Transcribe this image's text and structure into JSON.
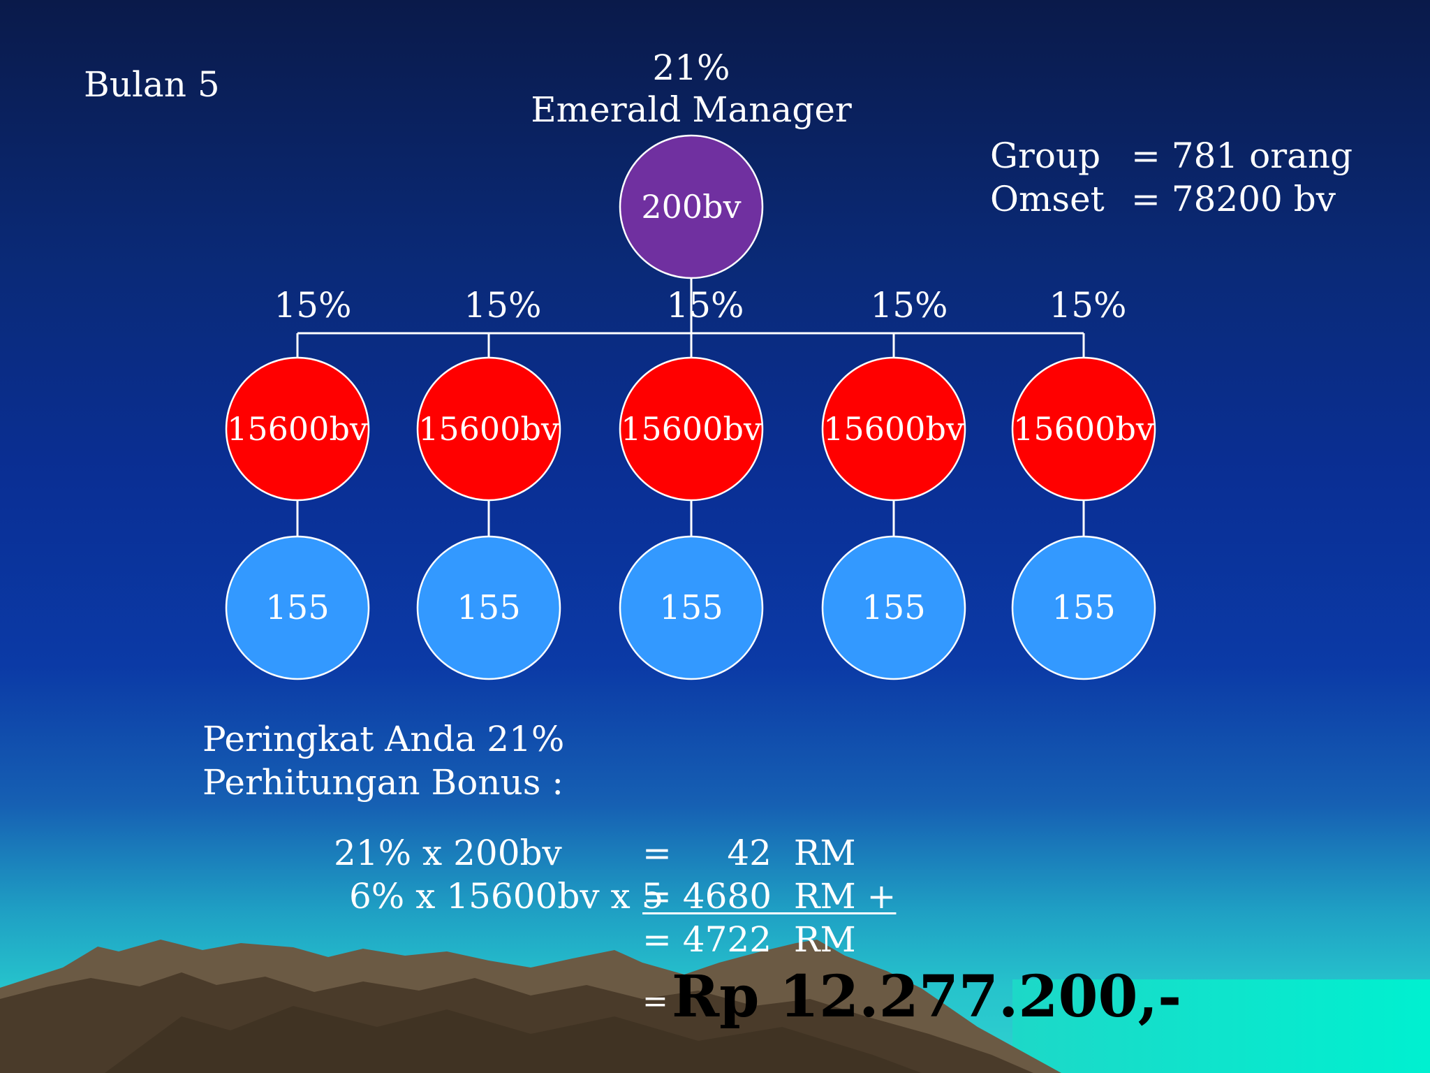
{
  "slide": {
    "title": "Bulan 5",
    "top_node": {
      "percent": "21%",
      "rank": "Emerald Manager",
      "value": "200bv"
    },
    "summary": {
      "group_label": "Group",
      "group_value": "= 781 orang",
      "omset_label": "Omset",
      "omset_value": "= 78200 bv"
    },
    "branches": [
      {
        "percent": "15%",
        "mid": "15600bv",
        "bottom": "155"
      },
      {
        "percent": "15%",
        "mid": "15600bv",
        "bottom": "155"
      },
      {
        "percent": "15%",
        "mid": "15600bv",
        "bottom": "155"
      },
      {
        "percent": "15%",
        "mid": "15600bv",
        "bottom": "155"
      },
      {
        "percent": "15%",
        "mid": "15600bv",
        "bottom": "155"
      }
    ],
    "rank_text": "Peringkat Anda 21%",
    "bonus_heading": "Perhitungan Bonus :",
    "calc": {
      "row1_left": "21% x 200bv",
      "row1_right": "=     42  RM",
      "row2_left": "6% x 15600bv x 5",
      "row2_right": "= 4680  RM +",
      "row3_right": "= 4722  RM",
      "final_eq": "=",
      "final_value": "Rp 12.277.200,-"
    },
    "colors": {
      "top_node": "#7030a0",
      "mid_node": "#ff0000",
      "bottom_node": "#3399ff",
      "connector": "#ffffff"
    }
  }
}
